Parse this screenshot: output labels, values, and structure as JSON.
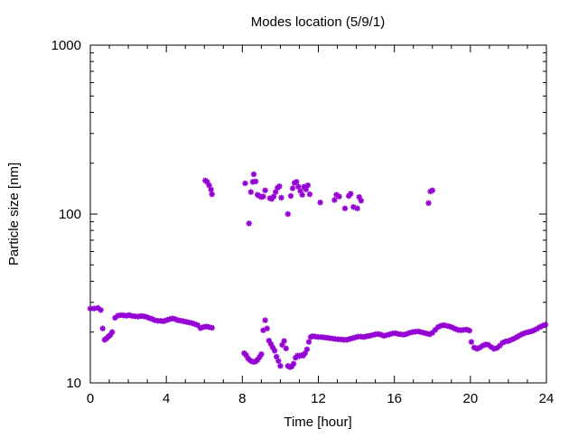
{
  "chart_data": {
    "type": "scatter",
    "title": "Modes location (5/9/1)",
    "xlabel": "Time [hour]",
    "ylabel": "Particle size [nm]",
    "xlim": [
      0,
      24
    ],
    "ylim": [
      10,
      1000
    ],
    "yscale": "log",
    "xticks": [
      0,
      4,
      8,
      12,
      16,
      20,
      24
    ],
    "yticks": [
      10,
      100,
      1000
    ],
    "xtick_labels": [
      "0",
      "4",
      "8",
      "12",
      "16",
      "20",
      "24"
    ],
    "ytick_labels": [
      "10",
      "100",
      "1000"
    ],
    "grid": false,
    "marker_color": "#9400D3",
    "series": [
      {
        "values": [
          [
            0.0,
            27.5
          ],
          [
            0.2,
            27.6
          ],
          [
            0.4,
            27.8
          ],
          [
            0.55,
            27.0
          ],
          [
            0.65,
            21.0
          ],
          [
            0.75,
            18.0
          ],
          [
            0.85,
            18.3
          ],
          [
            0.95,
            18.8
          ],
          [
            1.05,
            19.2
          ],
          [
            1.15,
            20.0
          ],
          [
            1.3,
            24.3
          ],
          [
            1.45,
            25.0
          ],
          [
            1.6,
            25.2
          ],
          [
            1.75,
            25.1
          ],
          [
            1.9,
            25.0
          ],
          [
            2.05,
            25.2
          ],
          [
            2.2,
            24.9
          ],
          [
            2.35,
            24.8
          ],
          [
            2.5,
            24.7
          ],
          [
            2.65,
            24.9
          ],
          [
            2.8,
            24.8
          ],
          [
            2.95,
            24.6
          ],
          [
            3.1,
            24.2
          ],
          [
            3.25,
            23.9
          ],
          [
            3.4,
            23.5
          ],
          [
            3.55,
            23.3
          ],
          [
            3.7,
            23.3
          ],
          [
            3.85,
            23.2
          ],
          [
            4.0,
            23.5
          ],
          [
            4.15,
            23.8
          ],
          [
            4.3,
            24.1
          ],
          [
            4.45,
            23.9
          ],
          [
            4.6,
            23.5
          ],
          [
            4.75,
            23.4
          ],
          [
            4.9,
            23.2
          ],
          [
            5.05,
            23.0
          ],
          [
            5.2,
            22.8
          ],
          [
            5.35,
            22.6
          ],
          [
            5.5,
            22.3
          ],
          [
            5.65,
            22.0
          ],
          [
            5.8,
            21.1
          ],
          [
            5.95,
            21.4
          ],
          [
            6.1,
            21.6
          ],
          [
            6.25,
            21.4
          ],
          [
            6.4,
            21.2
          ],
          [
            8.1,
            15.0
          ],
          [
            8.2,
            14.6
          ],
          [
            8.3,
            14.0
          ],
          [
            8.4,
            13.6
          ],
          [
            8.5,
            13.4
          ],
          [
            8.6,
            13.3
          ],
          [
            8.7,
            13.4
          ],
          [
            8.8,
            13.7
          ],
          [
            8.9,
            14.2
          ],
          [
            9.0,
            14.8
          ],
          [
            9.1,
            20.5
          ],
          [
            9.2,
            23.5
          ],
          [
            9.3,
            21.0
          ],
          [
            9.4,
            17.8
          ],
          [
            9.5,
            17.0
          ],
          [
            9.6,
            16.2
          ],
          [
            9.7,
            15.5
          ],
          [
            9.8,
            14.3
          ],
          [
            9.9,
            13.5
          ],
          [
            10.0,
            12.6
          ],
          [
            10.1,
            16.8
          ],
          [
            10.2,
            17.7
          ],
          [
            10.3,
            16.0
          ],
          [
            10.4,
            12.6
          ],
          [
            10.5,
            12.4
          ],
          [
            10.6,
            12.5
          ],
          [
            10.7,
            13.0
          ],
          [
            10.8,
            14.1
          ],
          [
            10.9,
            14.5
          ],
          [
            11.0,
            14.4
          ],
          [
            11.1,
            14.6
          ],
          [
            11.2,
            14.5
          ],
          [
            11.3,
            15.0
          ],
          [
            11.4,
            15.8
          ],
          [
            11.5,
            17.5
          ],
          [
            11.6,
            18.7
          ],
          [
            11.7,
            18.9
          ],
          [
            11.85,
            18.8
          ],
          [
            12.0,
            18.7
          ],
          [
            12.15,
            18.7
          ],
          [
            12.3,
            18.6
          ],
          [
            12.45,
            18.5
          ],
          [
            12.6,
            18.4
          ],
          [
            12.75,
            18.3
          ],
          [
            12.9,
            18.2
          ],
          [
            13.05,
            18.1
          ],
          [
            13.2,
            18.1
          ],
          [
            13.35,
            18.0
          ],
          [
            13.5,
            18.0
          ],
          [
            13.65,
            18.2
          ],
          [
            13.8,
            18.4
          ],
          [
            13.95,
            18.6
          ],
          [
            14.1,
            18.8
          ],
          [
            14.25,
            18.8
          ],
          [
            14.4,
            18.7
          ],
          [
            14.55,
            18.9
          ],
          [
            14.7,
            19.0
          ],
          [
            14.85,
            19.2
          ],
          [
            15.0,
            19.4
          ],
          [
            15.15,
            19.5
          ],
          [
            15.3,
            19.3
          ],
          [
            15.45,
            19.0
          ],
          [
            15.6,
            19.2
          ],
          [
            15.75,
            19.4
          ],
          [
            15.9,
            19.6
          ],
          [
            16.05,
            19.7
          ],
          [
            16.2,
            19.5
          ],
          [
            16.35,
            19.4
          ],
          [
            16.5,
            19.3
          ],
          [
            16.65,
            19.5
          ],
          [
            16.8,
            19.8
          ],
          [
            16.95,
            20.0
          ],
          [
            17.1,
            20.1
          ],
          [
            17.25,
            20.2
          ],
          [
            17.4,
            20.0
          ],
          [
            17.55,
            19.8
          ],
          [
            17.7,
            19.6
          ],
          [
            17.85,
            19.4
          ],
          [
            18.0,
            19.8
          ],
          [
            18.15,
            20.6
          ],
          [
            18.3,
            21.4
          ],
          [
            18.45,
            21.8
          ],
          [
            18.6,
            22.0
          ],
          [
            18.75,
            21.8
          ],
          [
            18.9,
            21.6
          ],
          [
            19.05,
            21.3
          ],
          [
            19.2,
            20.9
          ],
          [
            19.35,
            20.6
          ],
          [
            19.5,
            20.5
          ],
          [
            19.65,
            20.6
          ],
          [
            19.8,
            20.7
          ],
          [
            19.95,
            20.4
          ],
          [
            20.05,
            17.5
          ],
          [
            20.2,
            16.2
          ],
          [
            20.35,
            15.9
          ],
          [
            20.5,
            16.2
          ],
          [
            20.65,
            16.6
          ],
          [
            20.8,
            16.9
          ],
          [
            20.95,
            16.8
          ],
          [
            21.1,
            16.3
          ],
          [
            21.25,
            15.9
          ],
          [
            21.4,
            16.1
          ],
          [
            21.55,
            16.6
          ],
          [
            21.7,
            17.3
          ],
          [
            21.85,
            17.6
          ],
          [
            22.0,
            17.7
          ],
          [
            22.15,
            18.0
          ],
          [
            22.3,
            18.3
          ],
          [
            22.45,
            18.7
          ],
          [
            22.6,
            19.1
          ],
          [
            22.75,
            19.5
          ],
          [
            22.9,
            19.8
          ],
          [
            23.05,
            20.0
          ],
          [
            23.2,
            20.2
          ],
          [
            23.35,
            20.5
          ],
          [
            23.5,
            20.9
          ],
          [
            23.65,
            21.4
          ],
          [
            23.8,
            21.8
          ],
          [
            23.95,
            22.1
          ],
          [
            6.05,
            158
          ],
          [
            6.15,
            155
          ],
          [
            6.25,
            148
          ],
          [
            6.35,
            140
          ],
          [
            6.4,
            131
          ],
          [
            8.15,
            152
          ],
          [
            8.35,
            88
          ],
          [
            8.45,
            135
          ],
          [
            8.55,
            155
          ],
          [
            8.6,
            172
          ],
          [
            8.7,
            156
          ],
          [
            8.8,
            130
          ],
          [
            8.9,
            128
          ],
          [
            9.0,
            126
          ],
          [
            9.1,
            127
          ],
          [
            9.2,
            138
          ],
          [
            9.45,
            124
          ],
          [
            9.55,
            123
          ],
          [
            9.65,
            127
          ],
          [
            9.75,
            135
          ],
          [
            9.85,
            143
          ],
          [
            9.95,
            146
          ],
          [
            10.05,
            125
          ],
          [
            10.4,
            100
          ],
          [
            10.55,
            128
          ],
          [
            10.65,
            142
          ],
          [
            10.75,
            153
          ],
          [
            10.85,
            155
          ],
          [
            10.95,
            145
          ],
          [
            11.05,
            137
          ],
          [
            11.15,
            130
          ],
          [
            11.25,
            145
          ],
          [
            11.35,
            140
          ],
          [
            11.45,
            148
          ],
          [
            11.55,
            131
          ],
          [
            12.1,
            117
          ],
          [
            12.85,
            121
          ],
          [
            12.95,
            130
          ],
          [
            13.1,
            127
          ],
          [
            13.4,
            108
          ],
          [
            13.6,
            128
          ],
          [
            13.7,
            132
          ],
          [
            13.85,
            110
          ],
          [
            14.05,
            108
          ],
          [
            14.15,
            126
          ],
          [
            14.25,
            120
          ],
          [
            17.8,
            116
          ],
          [
            17.9,
            136
          ],
          [
            18.0,
            138
          ]
        ]
      }
    ]
  }
}
